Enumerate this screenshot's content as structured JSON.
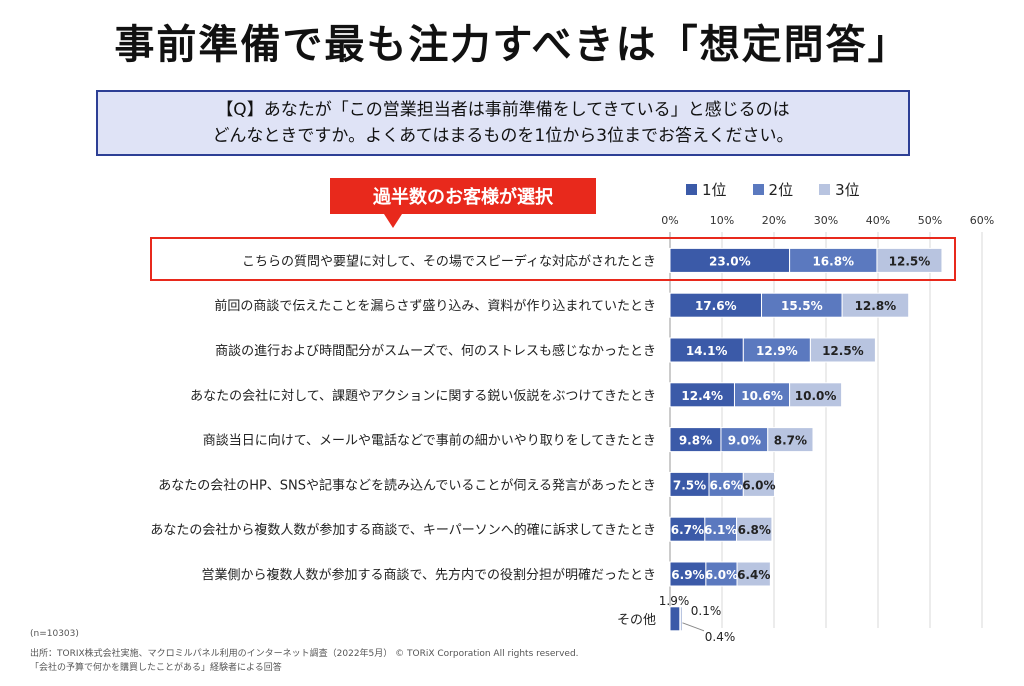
{
  "header": {
    "title": "事前準備で最も注力すべきは「想定問答」",
    "question_line1": "【Q】あなたが「この営業担当者は事前準備をしてきている」と感じるのは",
    "question_line2": "どんなときですか。よくあてはまるものを1位から3位までお答えください。",
    "badge": "過半数のお客様が選択"
  },
  "footer": {
    "n": "(n=10303)",
    "source": "出所：TORIX株式会社実施、マクロミルパネル利用のインターネット調査（2022年5月）",
    "copyright": "© TORiX Corporation All rights reserved.",
    "note": "「会社の予算で何かを購買したことがある」経験者による回答"
  },
  "colors": {
    "rank1": "#3b5aa8",
    "rank2": "#5b79bf",
    "rank3": "#b8c4e0",
    "accent_red": "#e8291c",
    "question_border": "#2d3f95",
    "question_bg": "#dfe3f6"
  },
  "chart_data": {
    "type": "bar",
    "orientation": "horizontal",
    "stacked": true,
    "xlim": [
      0,
      60
    ],
    "x_ticks": [
      "0%",
      "10%",
      "20%",
      "30%",
      "40%",
      "50%",
      "60%"
    ],
    "legend_position": "top-right",
    "categories": [
      "こちらの質問や要望に対して、その場でスピーディな対応がされたとき",
      "前回の商談で伝えたことを漏らさず盛り込み、資料が作り込まれていたとき",
      "商談の進行および時間配分がスムーズで、何のストレスも感じなかったとき",
      "あなたの会社に対して、課題やアクションに関する鋭い仮説をぶつけてきたとき",
      "商談当日に向けて、メールや電話などで事前の細かいやり取りをしてきたとき",
      "あなたの会社のHP、SNSや記事などを読み込んでいることが伺える発言があったとき",
      "あなたの会社から複数人数が参加する商談で、キーパーソンへ的確に訴求してきたとき",
      "営業側から複数人数が参加する商談で、先方内での役割分担が明確だったとき",
      "その他"
    ],
    "series": [
      {
        "name": "1位",
        "values": [
          23.0,
          17.6,
          14.1,
          12.4,
          9.8,
          7.5,
          6.7,
          6.9,
          1.9
        ]
      },
      {
        "name": "2位",
        "values": [
          16.8,
          15.5,
          12.9,
          10.6,
          9.0,
          6.6,
          6.1,
          6.0,
          0.1
        ]
      },
      {
        "name": "3位",
        "values": [
          12.5,
          12.8,
          12.5,
          10.0,
          8.7,
          6.0,
          6.8,
          6.4,
          0.4
        ]
      }
    ],
    "value_labels": [
      [
        "23.0%",
        "16.8%",
        "12.5%"
      ],
      [
        "17.6%",
        "15.5%",
        "12.8%"
      ],
      [
        "14.1%",
        "12.9%",
        "12.5%"
      ],
      [
        "12.4%",
        "10.6%",
        "10.0%"
      ],
      [
        "9.8%",
        "9.0%",
        "8.7%"
      ],
      [
        "7.5%",
        "6.6%",
        "6.0%"
      ],
      [
        "6.7%",
        "6.1%",
        "6.8%"
      ],
      [
        "6.9%",
        "6.0%",
        "6.4%"
      ],
      [
        "1.9%",
        "0.1%",
        "0.4%"
      ]
    ],
    "highlighted_category_index": 0
  }
}
